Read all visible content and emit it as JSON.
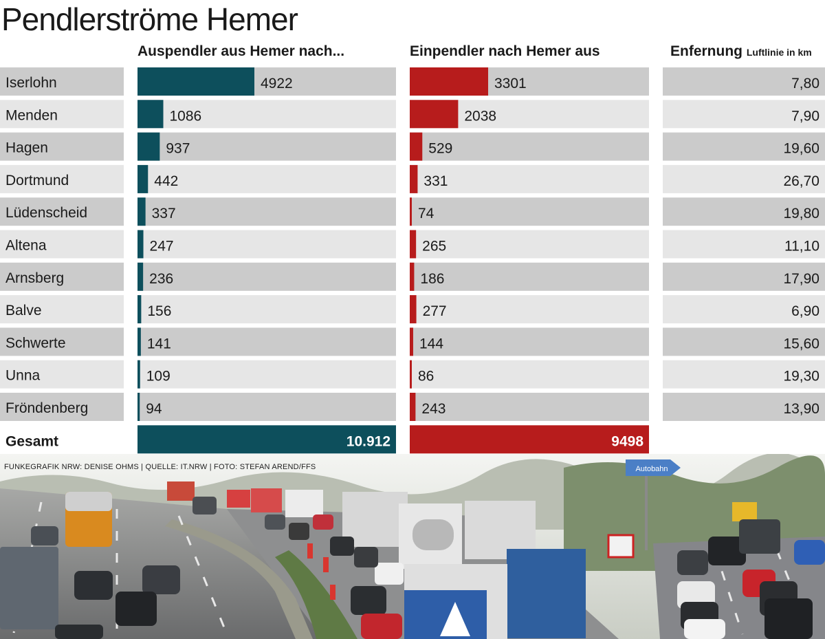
{
  "title": "Pendlerströme Hemer",
  "headers": {
    "out": "Auspendler aus Hemer nach...",
    "in": "Einpendler nach Hemer aus",
    "dist": "Enfernung",
    "dist_unit": "Luftlinie in km"
  },
  "colors": {
    "out": "#0d4f5c",
    "in": "#b71c1c",
    "row_dark": "#cbcbcb",
    "row_light": "#e6e6e6"
  },
  "chart_data": {
    "type": "bar",
    "categories": [
      "Iserlohn",
      "Menden",
      "Hagen",
      "Dortmund",
      "Lüdenscheid",
      "Altena",
      "Arnsberg",
      "Balve",
      "Schwerte",
      "Unna",
      "Fröndenberg"
    ],
    "series": [
      {
        "name": "Auspendler aus Hemer nach...",
        "values": [
          4922,
          1086,
          937,
          442,
          337,
          247,
          236,
          156,
          141,
          109,
          94
        ]
      },
      {
        "name": "Einpendler nach Hemer aus",
        "values": [
          3301,
          2038,
          529,
          331,
          74,
          265,
          186,
          277,
          144,
          86,
          243
        ]
      }
    ],
    "distances": [
      "7,80",
      "7,90",
      "19,60",
      "26,70",
      "19,80",
      "11,10",
      "17,90",
      "6,90",
      "15,60",
      "19,30",
      "13,90"
    ],
    "total_label": "Gesamt",
    "totals": [
      "10.912",
      "9498"
    ],
    "xlim": [
      0,
      15000
    ]
  },
  "credit": "FUNKEGRAFIK NRW: DENISE OHMS | QUELLE: IT.NRW | FOTO: STEFAN AREND/FFS",
  "photo": {
    "sign_text": "Autobahn"
  }
}
